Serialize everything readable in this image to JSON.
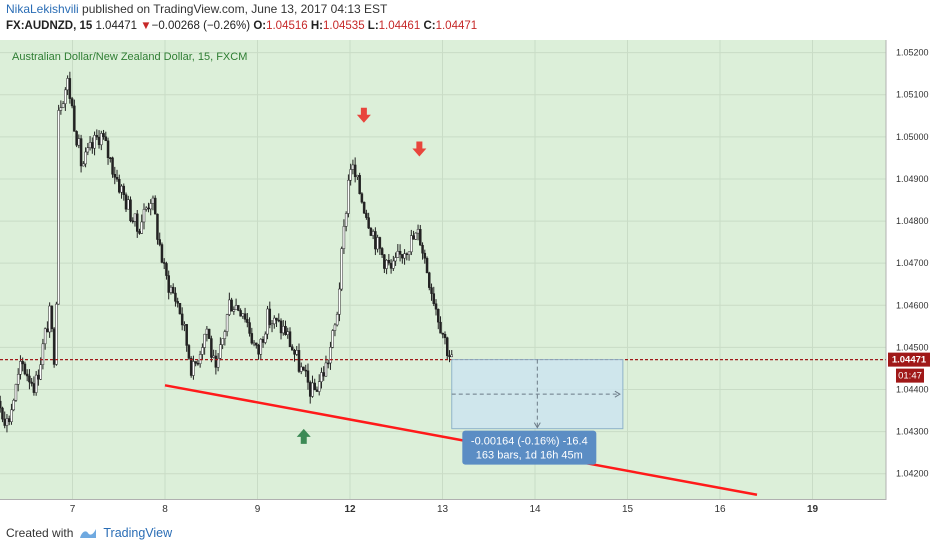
{
  "header": {
    "author": "NikaLekishvili",
    "published_text": "published on TradingView.com, June 13, 2017 04:13 EST",
    "symbol": "FX:AUDNZD, 15",
    "last": "1.04471",
    "change": "−0.00268 (−0.26%)",
    "o_label": "O:",
    "o_value": "1.04516",
    "h_label": "H:",
    "h_value": "1.04535",
    "l_label": "L:",
    "l_value": "1.04461",
    "c_label": "C:",
    "c_value": "1.04471"
  },
  "footer": {
    "created_with": "Created with",
    "brand": "TradingView"
  },
  "colors": {
    "background": "#dcefd9",
    "candle": "#222222",
    "trendline": "#ff1a1a",
    "price_line": "#a01818",
    "price_badge": "#a01818",
    "marker_down": "#e8453c",
    "marker_up": "#3c8a55",
    "measure_box": "#cde4ef",
    "measure_label": "#5b8dc4"
  },
  "chart_data": {
    "type": "candlestick",
    "title": "Australian Dollar/New Zealand Dollar, 15, FXCM",
    "x_ticks": [
      "7",
      "8",
      "9",
      "12",
      "13",
      "14",
      "15",
      "16",
      "19"
    ],
    "y_ticks": [
      "1.04200",
      "1.04300",
      "1.04400",
      "1.04500",
      "1.04600",
      "1.04700",
      "1.04800",
      "1.04900",
      "1.05000",
      "1.05100",
      "1.05200"
    ],
    "ylim": [
      1.0414,
      1.0523
    ],
    "current_price": "1.04471",
    "countdown": "01:47",
    "close_path": [
      {
        "t": 0.0,
        "p": 1.0426
      },
      {
        "t": 0.15,
        "p": 1.044
      },
      {
        "t": 0.3,
        "p": 1.0432
      },
      {
        "t": 0.45,
        "p": 1.0446
      },
      {
        "t": 0.6,
        "p": 1.0441
      },
      {
        "t": 0.75,
        "p": 1.0458
      },
      {
        "t": 0.82,
        "p": 1.0445
      },
      {
        "t": 0.84,
        "p": 1.0507
      },
      {
        "t": 0.95,
        "p": 1.0513
      },
      {
        "t": 1.1,
        "p": 1.0493
      },
      {
        "t": 1.3,
        "p": 1.0501
      },
      {
        "t": 1.5,
        "p": 1.0489
      },
      {
        "t": 1.7,
        "p": 1.0478
      },
      {
        "t": 1.85,
        "p": 1.0486
      },
      {
        "t": 2.0,
        "p": 1.0467
      },
      {
        "t": 2.15,
        "p": 1.046
      },
      {
        "t": 2.3,
        "p": 1.0444
      },
      {
        "t": 2.45,
        "p": 1.0455
      },
      {
        "t": 2.55,
        "p": 1.0443
      },
      {
        "t": 2.7,
        "p": 1.0461
      },
      {
        "t": 2.85,
        "p": 1.0459
      },
      {
        "t": 3.0,
        "p": 1.0448
      },
      {
        "t": 3.1,
        "p": 1.0457
      },
      {
        "t": 3.3,
        "p": 1.0454
      },
      {
        "t": 3.5,
        "p": 1.0443
      },
      {
        "t": 3.6,
        "p": 1.0439
      },
      {
        "t": 3.75,
        "p": 1.0446
      },
      {
        "t": 3.85,
        "p": 1.0456
      },
      {
        "t": 4.0,
        "p": 1.0494
      },
      {
        "t": 4.15,
        "p": 1.0484
      },
      {
        "t": 4.3,
        "p": 1.0474
      },
      {
        "t": 4.45,
        "p": 1.0468
      },
      {
        "t": 4.6,
        "p": 1.0474
      },
      {
        "t": 4.75,
        "p": 1.0477
      },
      {
        "t": 4.85,
        "p": 1.0467
      },
      {
        "t": 4.95,
        "p": 1.0458
      },
      {
        "t": 5.05,
        "p": 1.045
      },
      {
        "t": 5.1,
        "p": 1.0447
      }
    ],
    "trendline": {
      "start": {
        "t": 2.0,
        "p": 1.0441
      },
      "end": {
        "t": 8.4,
        "p": 1.0415
      }
    },
    "markers": [
      {
        "type": "down",
        "t": 4.15,
        "p": 1.0505
      },
      {
        "type": "down",
        "t": 4.75,
        "p": 1.0497
      },
      {
        "type": "up",
        "t": 3.5,
        "p": 1.0429
      }
    ],
    "measurement": {
      "t_start": 5.1,
      "t_end": 6.95,
      "p_top": 1.04471,
      "p_bottom": 1.04307,
      "label_line1": "-0.00164 (-0.16%) -16.4",
      "label_line2": "163 bars, 1d 16h 45m"
    }
  }
}
